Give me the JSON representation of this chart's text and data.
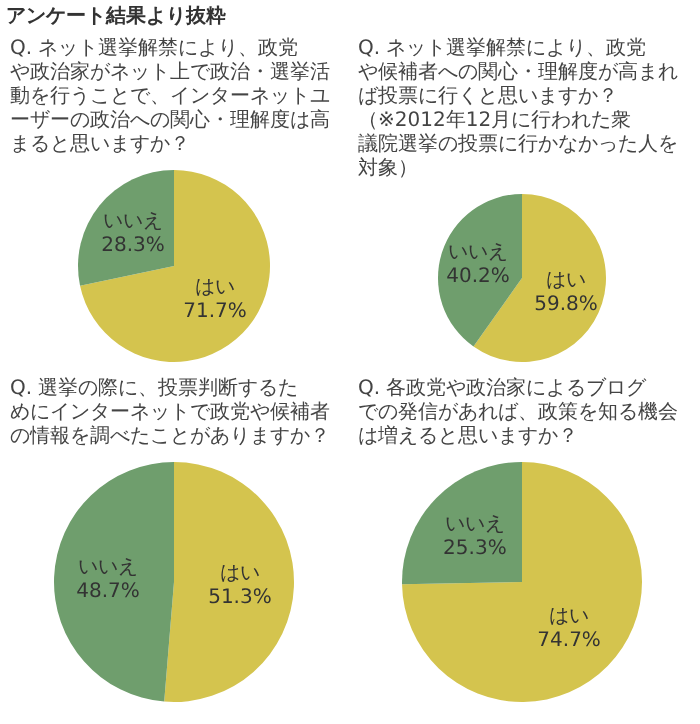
{
  "chart_data": [
    {
      "type": "pie",
      "title": "アンケート結果より抜粋",
      "subtitle": "Q. ネット選挙解禁により、政党や政治家がネット上で政治・選挙活動を行うことで、インターネットユーザーの政治への関心・理解度は高まると思いますか？",
      "categories": [
        "はい",
        "いいえ"
      ],
      "values": [
        71.7,
        28.3
      ],
      "colors": [
        "#d4c44e",
        "#6f9e6d"
      ],
      "value_labels": [
        "71.7%",
        "28.3%"
      ],
      "legend": false
    },
    {
      "type": "pie",
      "title": "Q. ネット選挙解禁により、政党や候補者への関心・理解度が高まれば投票に行くと思いますか？",
      "annotations": [
        "（※2012年12月に行われた衆議院選挙の投票に行かなかった人を対象）"
      ],
      "categories": [
        "はい",
        "いいえ"
      ],
      "values": [
        59.8,
        40.2
      ],
      "colors": [
        "#d4c44e",
        "#6f9e6d"
      ],
      "value_labels": [
        "59.8%",
        "40.2%"
      ],
      "legend": false
    },
    {
      "type": "pie",
      "title": "Q. 選挙の際に、投票判断するためにインターネットで政党や候補者の情報を調べたことがありますか？",
      "categories": [
        "はい",
        "いいえ"
      ],
      "values": [
        51.3,
        48.7
      ],
      "colors": [
        "#d4c44e",
        "#6f9e6d"
      ],
      "value_labels": [
        "51.3%",
        "48.7%"
      ],
      "legend": false
    },
    {
      "type": "pie",
      "title": "Q. 各政党や政治家によるブログでの発信があれば、政策を知る機会は増えると思いますか？",
      "categories": [
        "はい",
        "いいえ"
      ],
      "values": [
        74.7,
        25.3
      ],
      "colors": [
        "#d4c44e",
        "#6f9e6d"
      ],
      "value_labels": [
        "74.7%",
        "25.3%"
      ],
      "legend": false
    }
  ]
}
